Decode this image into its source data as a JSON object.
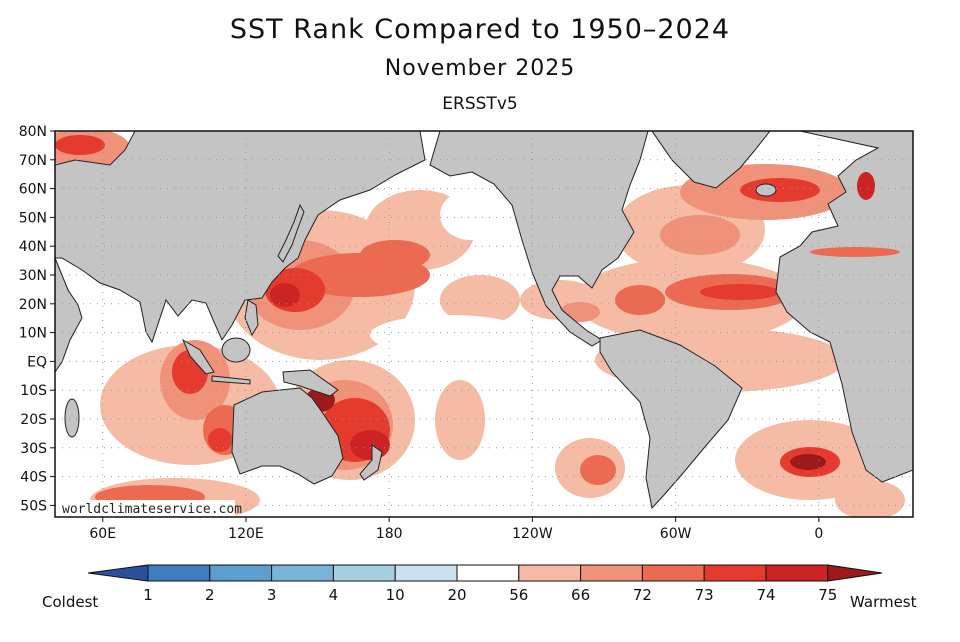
{
  "title": "SST Rank Compared to 1950–2024",
  "subtitle": "November 2025",
  "dataset": "ERSSTv5",
  "watermark": "worldclimateservice.com",
  "lat_labels": [
    "80N",
    "70N",
    "60N",
    "50N",
    "40N",
    "30N",
    "20N",
    "10N",
    "EQ",
    "10S",
    "20S",
    "30S",
    "40S",
    "50S"
  ],
  "lon_labels": [
    "60E",
    "120E",
    "180",
    "120W",
    "60W",
    "0"
  ],
  "colorbar": {
    "left_label": "Coldest",
    "right_label": "Warmest",
    "tick_labels": [
      "1",
      "2",
      "3",
      "4",
      "10",
      "20",
      "56",
      "66",
      "72",
      "73",
      "74",
      "75"
    ],
    "colors": [
      "#2b4f9c",
      "#3f7cc0",
      "#5c9ccf",
      "#78b4d8",
      "#a4d0e2",
      "#cadff0",
      "#ffffff",
      "#f5bba4",
      "#f0927a",
      "#ec6a52",
      "#e53a2e",
      "#cc2424",
      "#9e1a1a"
    ]
  },
  "colors": {
    "land": "#c4c4c4",
    "ocean_neutral": "#ffffff"
  }
}
